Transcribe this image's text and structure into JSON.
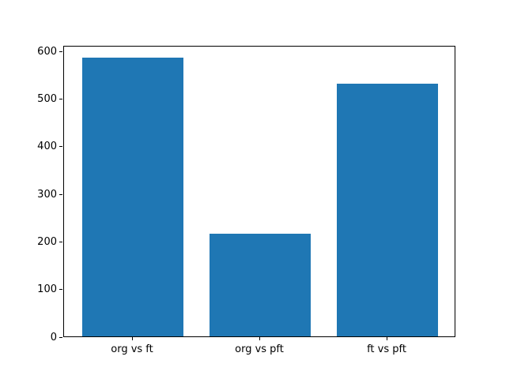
{
  "chart_data": {
    "type": "bar",
    "title": "",
    "xlabel": "",
    "ylabel": "",
    "categories": [
      "org vs ft",
      "org vs pft",
      "ft vs pft"
    ],
    "values": [
      585,
      215,
      531
    ],
    "yticks": [
      0,
      100,
      200,
      300,
      400,
      500,
      600
    ],
    "ylim": [
      0,
      612
    ],
    "xlim": [
      -0.54,
      2.54
    ],
    "bar_width": 0.8,
    "bar_color": "#1f77b4",
    "spine_color": "#000000",
    "background_color": "#ffffff",
    "grid": false,
    "legend": "none"
  }
}
